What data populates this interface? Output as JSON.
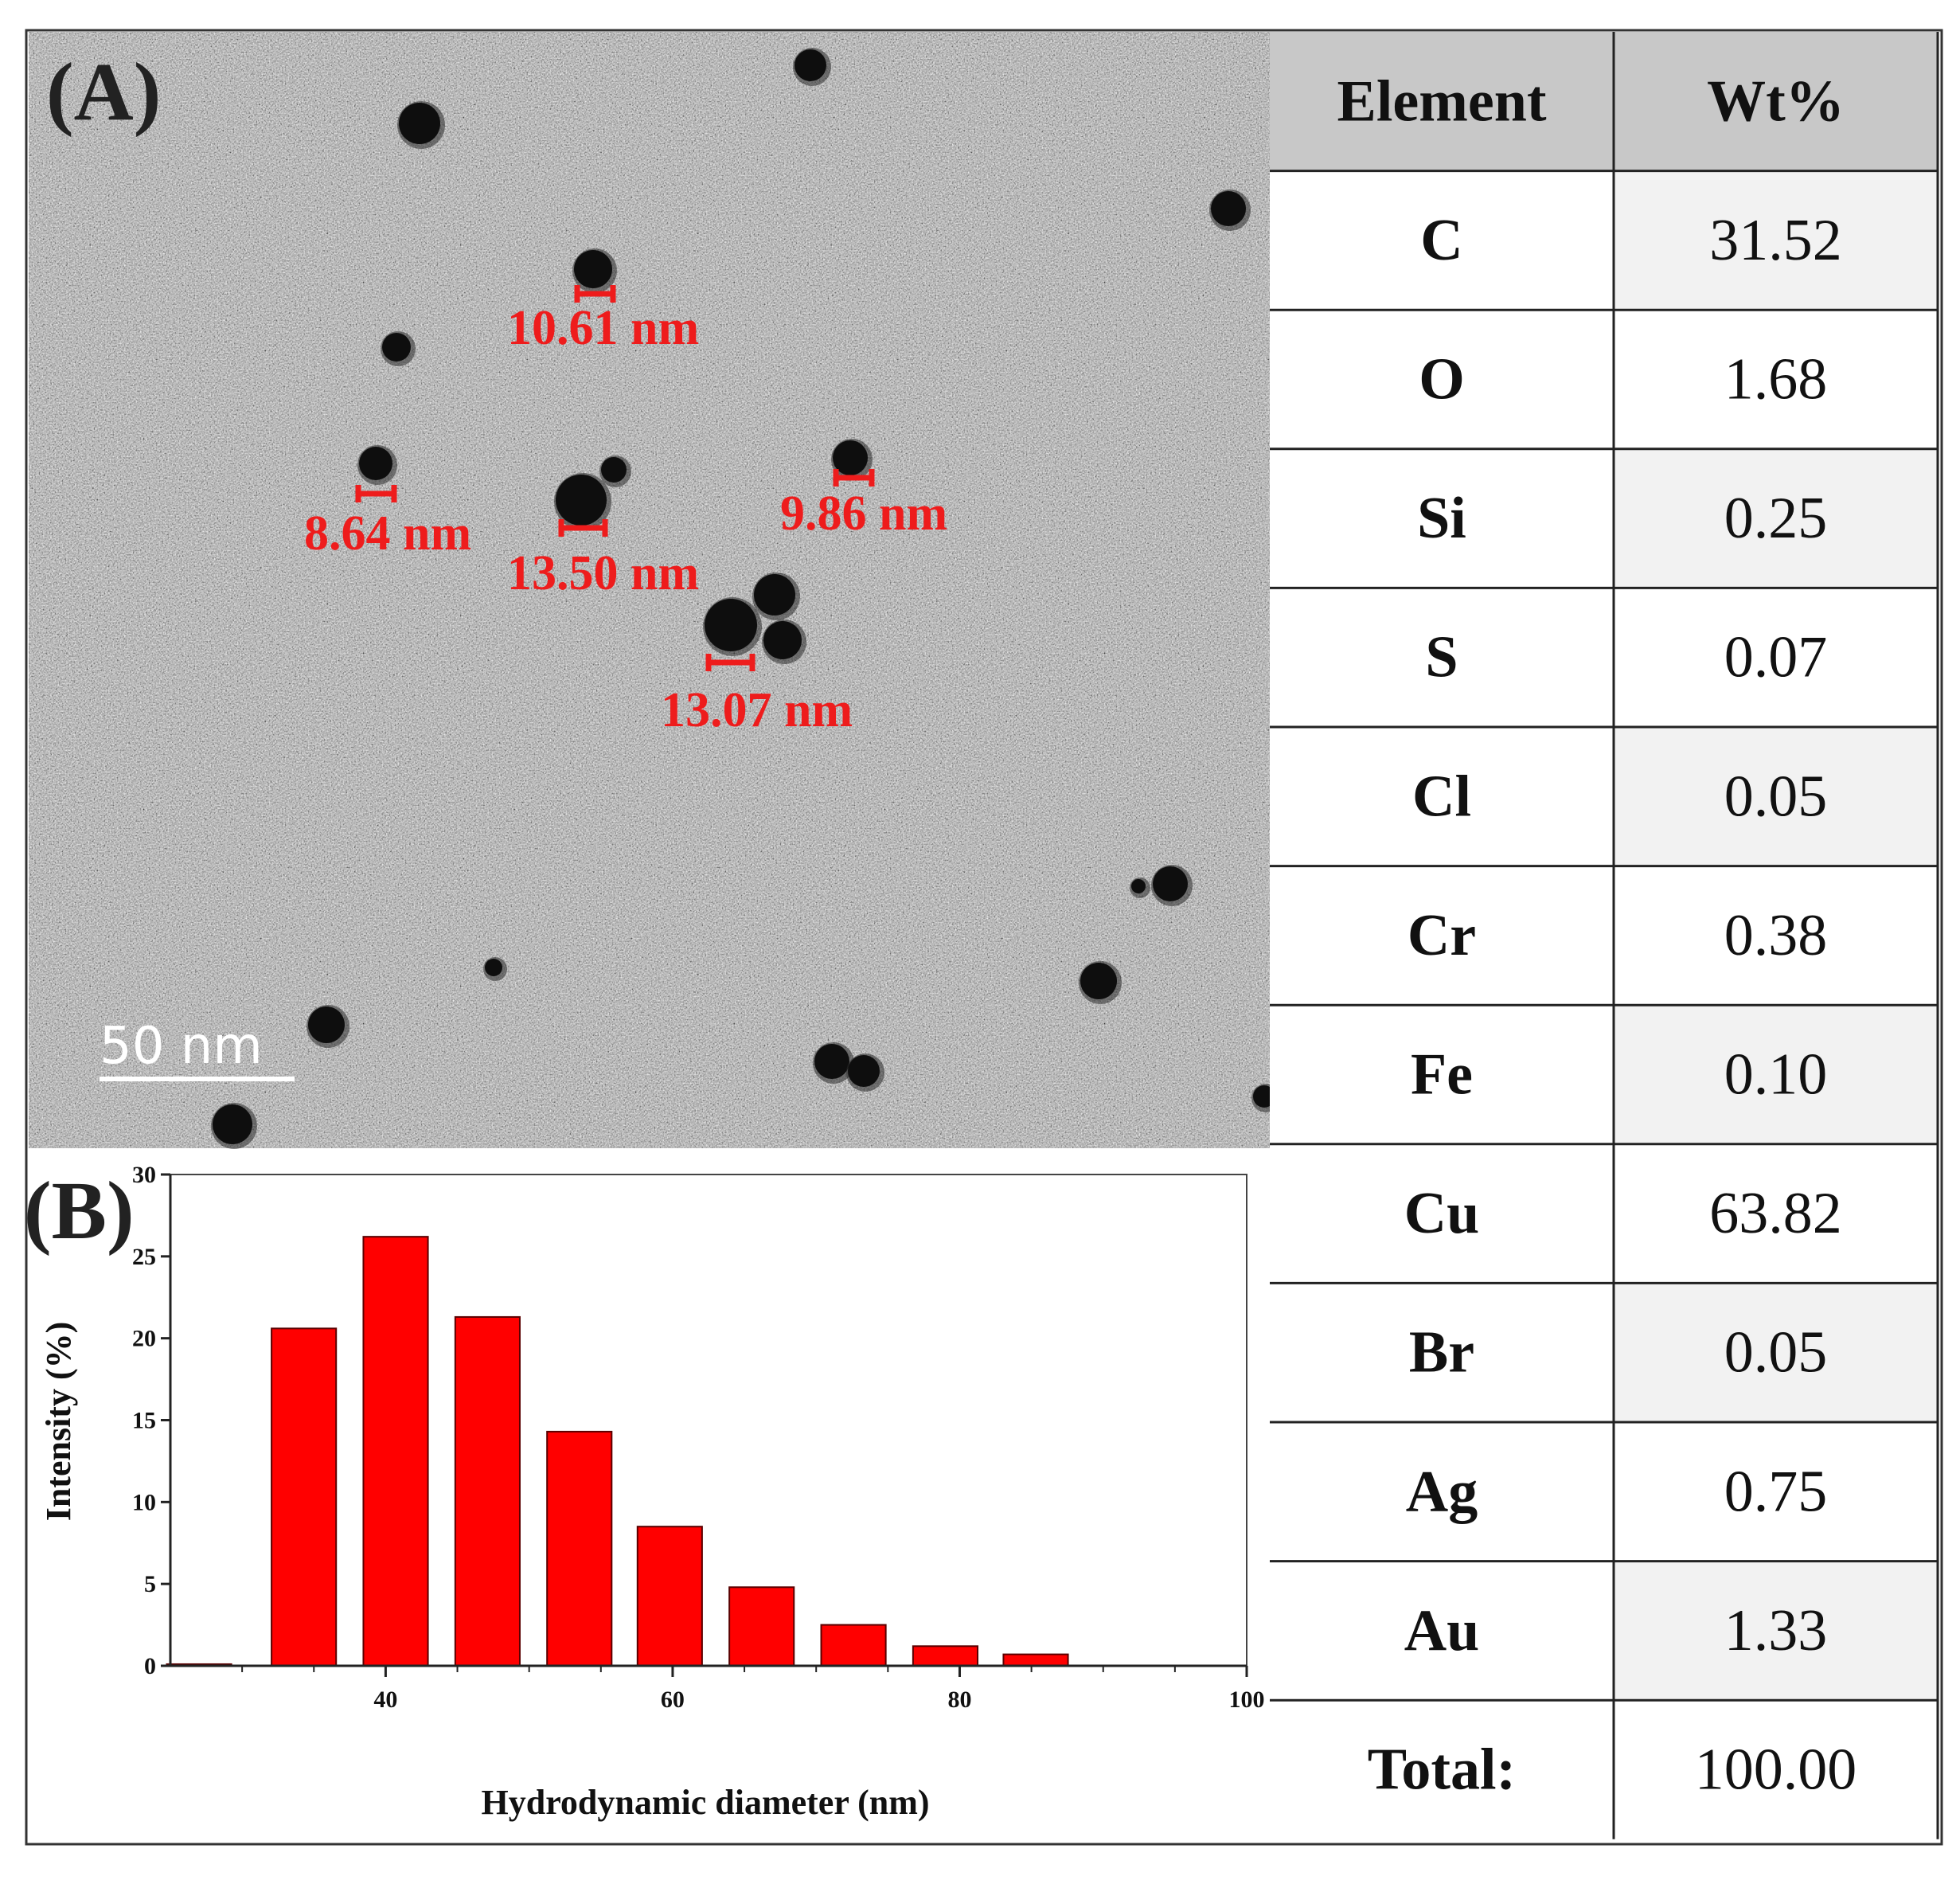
{
  "panel_labels": {
    "a": "(A)",
    "b": "(B)"
  },
  "tem": {
    "scale_bar": "50 nm",
    "measurements": [
      "10.61 nm",
      "8.64 nm",
      "13.50 nm",
      "9.86 nm",
      "13.07 nm"
    ]
  },
  "colors": {
    "bar": "#ff0000",
    "measure": "#ee1c1c",
    "table_header": "#c8c8c8",
    "table_alt": "#f2f2f2"
  },
  "chart_data": {
    "type": "bar",
    "xlabel": "Hydrodynamic diameter (nm)",
    "ylabel": "Intensity (%)",
    "x": [
      27,
      34.3,
      40.7,
      47.1,
      53.5,
      59.8,
      66.2,
      72.6,
      79,
      85.3
    ],
    "values": [
      0.1,
      20.6,
      26.2,
      21.3,
      14.3,
      8.5,
      4.8,
      2.5,
      1.2,
      0.7
    ],
    "bar_width": 4.5,
    "xlim": [
      25,
      100
    ],
    "ylim": [
      0,
      30
    ],
    "xticks": [
      40,
      60,
      80,
      100
    ],
    "yticks": [
      0,
      5,
      10,
      15,
      20,
      25,
      30
    ],
    "grid": false
  },
  "table": {
    "headers": [
      "Element",
      "Wt%"
    ],
    "rows": [
      {
        "element": "C",
        "wt": "31.52"
      },
      {
        "element": "O",
        "wt": "1.68"
      },
      {
        "element": "Si",
        "wt": "0.25"
      },
      {
        "element": "S",
        "wt": "0.07"
      },
      {
        "element": "Cl",
        "wt": "0.05"
      },
      {
        "element": "Cr",
        "wt": "0.38"
      },
      {
        "element": "Fe",
        "wt": "0.10"
      },
      {
        "element": "Cu",
        "wt": "63.82"
      },
      {
        "element": "Br",
        "wt": "0.05"
      },
      {
        "element": "Ag",
        "wt": "0.75"
      },
      {
        "element": "Au",
        "wt": "1.33"
      }
    ],
    "total_label": "Total:",
    "total_value": "100.00"
  }
}
